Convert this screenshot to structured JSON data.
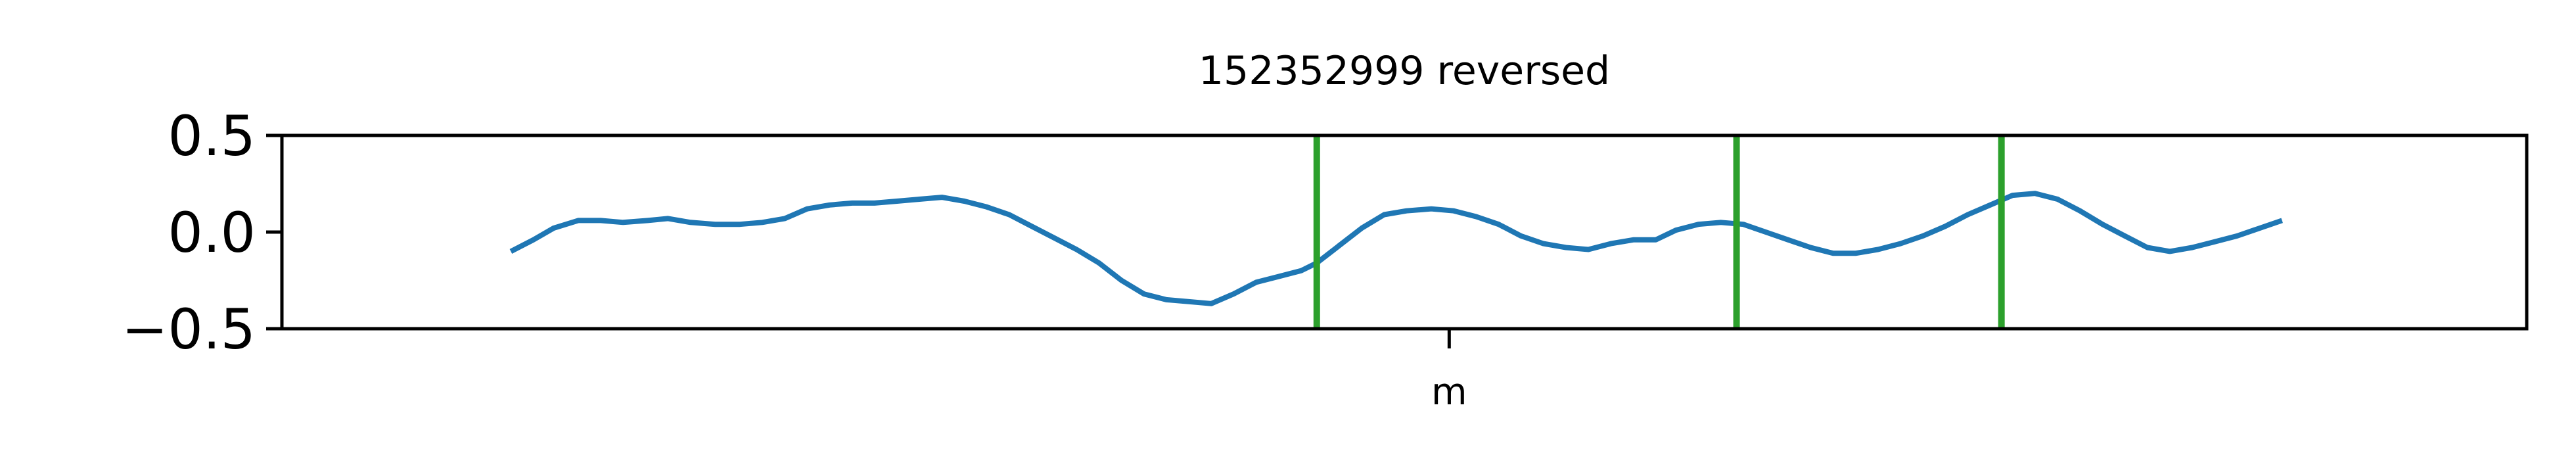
{
  "chart_data": {
    "type": "line",
    "title": "152352999 reversed",
    "xlabel": "",
    "ylabel": "",
    "ylim": [
      -0.5,
      0.5
    ],
    "yticks": [
      {
        "value": 0.5,
        "label": "0.5"
      },
      {
        "value": 0.0,
        "label": "0.0"
      },
      {
        "value": -0.5,
        "label": "−0.5"
      }
    ],
    "xlim": [
      0,
      100
    ],
    "xticks": [
      {
        "value": 52,
        "label": "m"
      }
    ],
    "grid": false,
    "legend": "none",
    "series": [
      {
        "color": "#1f77b4",
        "x": [
          10.2,
          11.2,
          12.1,
          13.2,
          14.2,
          15.2,
          16.3,
          17.2,
          18.2,
          19.3,
          20.4,
          21.4,
          22.4,
          23.4,
          24.4,
          25.4,
          26.4,
          27.4,
          28.4,
          29.4,
          30.4,
          31.4,
          32.4,
          33.4,
          34.4,
          35.4,
          36.4,
          37.4,
          38.4,
          39.4,
          40.4,
          41.4,
          42.4,
          43.4,
          44.4,
          45.4,
          46.1,
          47.1,
          48.1,
          49.1,
          50.1,
          51.2,
          52.2,
          53.2,
          54.2,
          55.2,
          56.2,
          57.2,
          58.2,
          59.2,
          60.2,
          61.2,
          62.1,
          63.1,
          64.1,
          65.1,
          66.1,
          67.1,
          68.1,
          69.1,
          70.1,
          71.1,
          72.1,
          73.1,
          74.1,
          75.1,
          76.1,
          77.1,
          78.1,
          79.1,
          80.1,
          81.1,
          82.1,
          83.1,
          84.1,
          85.1,
          86.1,
          87.1,
          88.1,
          89.1
        ],
        "y": [
          -0.1,
          -0.04,
          0.02,
          0.06,
          0.06,
          0.05,
          0.06,
          0.07,
          0.05,
          0.04,
          0.04,
          0.05,
          0.07,
          0.12,
          0.14,
          0.15,
          0.15,
          0.16,
          0.17,
          0.18,
          0.16,
          0.13,
          0.09,
          0.03,
          -0.03,
          -0.09,
          -0.16,
          -0.25,
          -0.32,
          -0.35,
          -0.36,
          -0.37,
          -0.32,
          -0.26,
          -0.23,
          -0.2,
          -0.16,
          -0.07,
          0.02,
          0.09,
          0.11,
          0.12,
          0.11,
          0.08,
          0.04,
          -0.02,
          -0.06,
          -0.08,
          -0.09,
          -0.06,
          -0.04,
          -0.04,
          0.01,
          0.04,
          0.05,
          0.04,
          0.0,
          -0.04,
          -0.08,
          -0.11,
          -0.11,
          -0.09,
          -0.06,
          -0.02,
          0.03,
          0.09,
          0.14,
          0.19,
          0.2,
          0.17,
          0.11,
          0.04,
          -0.02,
          -0.08,
          -0.1,
          -0.08,
          -0.05,
          -0.02,
          0.02,
          0.06
        ]
      }
    ],
    "vlines": {
      "color": "#2ca02c",
      "x": [
        46.1,
        64.8,
        76.6
      ]
    }
  }
}
